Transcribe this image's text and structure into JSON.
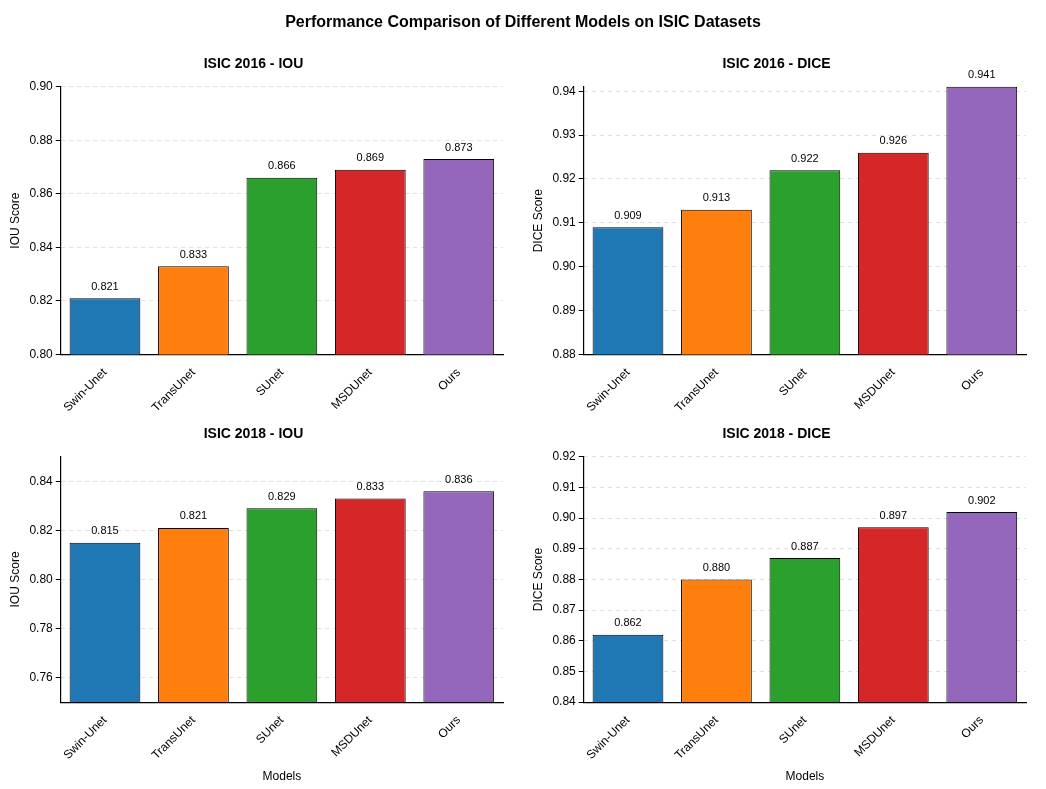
{
  "chart_data": [
    {
      "type": "bar",
      "title": "ISIC 2016 - IOU",
      "ylabel": "IOU Score",
      "annotations": [
        "Performance Comparison of Different Models on ISIC Datasets"
      ],
      "categories": [
        "Swin-Unet",
        "TransUnet",
        "SUnet",
        "MSDUnet",
        "Ours"
      ],
      "values": [
        0.821,
        0.833,
        0.866,
        0.869,
        0.873
      ],
      "value_labels": [
        "0.821",
        "0.833",
        "0.866",
        "0.869",
        "0.873"
      ],
      "colors": [
        "#1f77b4",
        "#ff7f0e",
        "#2ca02c",
        "#d62728",
        "#9467bd"
      ],
      "ylim": [
        0.8,
        0.9
      ],
      "yticks": [
        {
          "value": 0.8,
          "label": "0.80"
        },
        {
          "value": 0.82,
          "label": "0.82"
        },
        {
          "value": 0.84,
          "label": "0.84"
        },
        {
          "value": 0.86,
          "label": "0.86"
        },
        {
          "value": 0.88,
          "label": "0.88"
        },
        {
          "value": 0.9,
          "label": "0.90"
        }
      ],
      "grid": "y"
    },
    {
      "type": "bar",
      "title": "ISIC 2016 - DICE",
      "ylabel": "DICE Score",
      "categories": [
        "Swin-Unet",
        "TransUnet",
        "SUnet",
        "MSDUnet",
        "Ours"
      ],
      "values": [
        0.909,
        0.913,
        0.922,
        0.926,
        0.941
      ],
      "value_labels": [
        "0.909",
        "0.913",
        "0.922",
        "0.926",
        "0.941"
      ],
      "colors": [
        "#1f77b4",
        "#ff7f0e",
        "#2ca02c",
        "#d62728",
        "#9467bd"
      ],
      "ylim": [
        0.88,
        0.941
      ],
      "yticks": [
        {
          "value": 0.88,
          "label": "0.88"
        },
        {
          "value": 0.89,
          "label": "0.89"
        },
        {
          "value": 0.9,
          "label": "0.90"
        },
        {
          "value": 0.91,
          "label": "0.91"
        },
        {
          "value": 0.92,
          "label": "0.92"
        },
        {
          "value": 0.93,
          "label": "0.93"
        },
        {
          "value": 0.94,
          "label": "0.94"
        }
      ],
      "grid": "y"
    },
    {
      "type": "bar",
      "title": "ISIC 2018 - IOU",
      "ylabel": "IOU Score",
      "xlabel": "Models",
      "categories": [
        "Swin-Unet",
        "TransUnet",
        "SUnet",
        "MSDUnet",
        "Ours"
      ],
      "values": [
        0.815,
        0.821,
        0.829,
        0.833,
        0.836
      ],
      "value_labels": [
        "0.815",
        "0.821",
        "0.829",
        "0.833",
        "0.836"
      ],
      "colors": [
        "#1f77b4",
        "#ff7f0e",
        "#2ca02c",
        "#d62728",
        "#9467bd"
      ],
      "ylim": [
        0.75,
        0.85
      ],
      "yticks": [
        {
          "value": 0.76,
          "label": "0.76"
        },
        {
          "value": 0.78,
          "label": "0.78"
        },
        {
          "value": 0.8,
          "label": "0.80"
        },
        {
          "value": 0.82,
          "label": "0.82"
        },
        {
          "value": 0.84,
          "label": "0.84"
        }
      ],
      "grid": "y"
    },
    {
      "type": "bar",
      "title": "ISIC 2018 - DICE",
      "ylabel": "DICE Score",
      "xlabel": "Models",
      "categories": [
        "Swin-Unet",
        "TransUnet",
        "SUnet",
        "MSDUnet",
        "Ours"
      ],
      "values": [
        0.862,
        0.88,
        0.887,
        0.897,
        0.902
      ],
      "value_labels": [
        "0.862",
        "0.880",
        "0.887",
        "0.897",
        "0.902"
      ],
      "colors": [
        "#1f77b4",
        "#ff7f0e",
        "#2ca02c",
        "#d62728",
        "#9467bd"
      ],
      "ylim": [
        0.84,
        0.92
      ],
      "yticks": [
        {
          "value": 0.84,
          "label": "0.84"
        },
        {
          "value": 0.85,
          "label": "0.85"
        },
        {
          "value": 0.86,
          "label": "0.86"
        },
        {
          "value": 0.87,
          "label": "0.87"
        },
        {
          "value": 0.88,
          "label": "0.88"
        },
        {
          "value": 0.89,
          "label": "0.89"
        },
        {
          "value": 0.9,
          "label": "0.90"
        },
        {
          "value": 0.91,
          "label": "0.91"
        },
        {
          "value": 0.92,
          "label": "0.92"
        }
      ],
      "grid": "y"
    }
  ]
}
